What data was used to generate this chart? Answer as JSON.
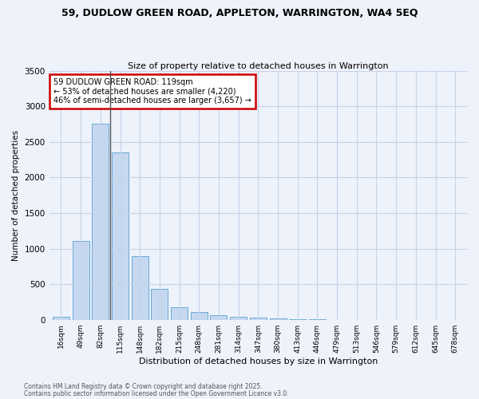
{
  "title": "59, DUDLOW GREEN ROAD, APPLETON, WARRINGTON, WA4 5EQ",
  "subtitle": "Size of property relative to detached houses in Warrington",
  "xlabel": "Distribution of detached houses by size in Warrington",
  "ylabel": "Number of detached properties",
  "categories": [
    "16sqm",
    "49sqm",
    "82sqm",
    "115sqm",
    "148sqm",
    "182sqm",
    "215sqm",
    "248sqm",
    "281sqm",
    "314sqm",
    "347sqm",
    "380sqm",
    "413sqm",
    "446sqm",
    "479sqm",
    "513sqm",
    "546sqm",
    "579sqm",
    "612sqm",
    "645sqm",
    "678sqm"
  ],
  "values": [
    45,
    1110,
    2760,
    2350,
    890,
    430,
    175,
    105,
    65,
    45,
    25,
    18,
    8,
    4,
    2,
    1,
    1,
    1,
    0,
    0,
    0
  ],
  "bar_color": "#c5d8f0",
  "bar_edge_color": "#6aaad4",
  "background_color": "#eef2fb",
  "grid_color": "#c8d2e8",
  "ylim": [
    0,
    3500
  ],
  "yticks": [
    0,
    500,
    1000,
    1500,
    2000,
    2500,
    3000,
    3500
  ],
  "vline_x": 3.0,
  "annotation_text": "59 DUDLOW GREEN ROAD: 119sqm\n← 53% of detached houses are smaller (4,220)\n46% of semi-detached houses are larger (3,657) →",
  "annotation_box_color": "#ffffff",
  "annotation_box_edge": "#cc0000",
  "footer_line1": "Contains HM Land Registry data © Crown copyright and database right 2025.",
  "footer_line2": "Contains public sector information licensed under the Open Government Licence v3.0."
}
